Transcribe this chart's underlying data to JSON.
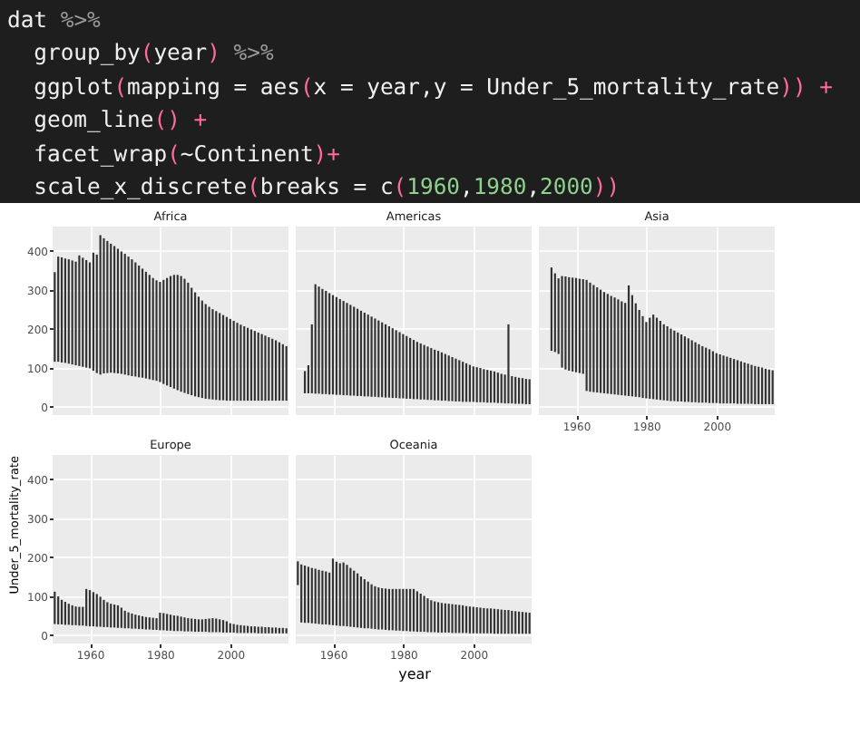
{
  "chart_data": [
    {
      "type": "bar",
      "title": "Africa",
      "annotations": [
        "dat %>%",
        "  group_by(year) %>%",
        "  ggplot(mapping = aes(x = year,y = Under_5_mortality_rate)) +",
        "  geom_line() +",
        "  facet_wrap(~Continent)+",
        "  scale_x_discrete(breaks = c(1960,1980,2000))"
      ],
      "x": [
        1950,
        1951,
        1952,
        1953,
        1954,
        1955,
        1956,
        1957,
        1958,
        1959,
        1960,
        1961,
        1962,
        1963,
        1964,
        1965,
        1966,
        1967,
        1968,
        1969,
        1970,
        1971,
        1972,
        1973,
        1974,
        1975,
        1976,
        1977,
        1978,
        1979,
        1980,
        1981,
        1982,
        1983,
        1984,
        1985,
        1986,
        1987,
        1988,
        1989,
        1990,
        1991,
        1992,
        1993,
        1994,
        1995,
        1996,
        1997,
        1998,
        1999,
        2000,
        2001,
        2002,
        2003,
        2004,
        2005,
        2006,
        2007,
        2008,
        2009,
        2010,
        2011,
        2012,
        2013,
        2014,
        2015,
        2016
      ],
      "base": [
        115,
        115,
        113,
        112,
        110,
        108,
        106,
        104,
        102,
        100,
        98,
        92,
        86,
        82,
        85,
        86,
        87,
        86,
        85,
        84,
        82,
        80,
        78,
        77,
        75,
        74,
        72,
        70,
        68,
        66,
        63,
        58,
        54,
        50,
        46,
        42,
        38,
        35,
        32,
        29,
        26,
        24,
        22,
        20,
        19,
        18,
        17,
        16,
        16,
        15,
        15,
        15,
        15,
        15,
        15,
        15,
        15,
        15,
        15,
        15,
        15,
        15,
        15,
        15,
        15,
        15,
        15
      ],
      "values": [
        230,
        270,
        270,
        268,
        268,
        267,
        266,
        284,
        280,
        276,
        272,
        303,
        304,
        358,
        347,
        339,
        331,
        326,
        320,
        314,
        310,
        305,
        300,
        293,
        287,
        280,
        274,
        268,
        262,
        258,
        257,
        267,
        276,
        285,
        292,
        296,
        297,
        293,
        286,
        276,
        267,
        258,
        250,
        243,
        237,
        232,
        228,
        224,
        219,
        215,
        210,
        205,
        200,
        195,
        191,
        187,
        183,
        179,
        175,
        171,
        167,
        163,
        159,
        155,
        150,
        145,
        140
      ],
      "color": "#333333",
      "xlim": [
        1949.4,
        2016.6
      ],
      "xticks": [
        1960,
        1980,
        2000
      ],
      "ylim": [
        -22,
        462
      ],
      "yticks": [
        0,
        100,
        200,
        300,
        400
      ],
      "grid": true,
      "tick_labels": "y"
    },
    {
      "type": "bar",
      "title": "Americas",
      "x": [
        1952,
        1953,
        1954,
        1955,
        1956,
        1957,
        1958,
        1959,
        1960,
        1961,
        1962,
        1963,
        1964,
        1965,
        1966,
        1967,
        1968,
        1969,
        1970,
        1971,
        1972,
        1973,
        1974,
        1975,
        1976,
        1977,
        1978,
        1979,
        1980,
        1981,
        1982,
        1983,
        1984,
        1985,
        1986,
        1987,
        1988,
        1989,
        1990,
        1991,
        1992,
        1993,
        1994,
        1995,
        1996,
        1997,
        1998,
        1999,
        2000,
        2001,
        2002,
        2003,
        2004,
        2005,
        2006,
        2007,
        2008,
        2009,
        2010,
        2011,
        2012,
        2013,
        2014,
        2015,
        2016
      ],
      "base": [
        34,
        34,
        34,
        33,
        33,
        32,
        32,
        31,
        31,
        30,
        30,
        29,
        29,
        28,
        28,
        27,
        27,
        26,
        26,
        25,
        25,
        24,
        24,
        23,
        23,
        22,
        22,
        21,
        21,
        20,
        20,
        19,
        19,
        18,
        18,
        17,
        17,
        16,
        16,
        15,
        15,
        14,
        14,
        13,
        13,
        12,
        12,
        12,
        12,
        11,
        11,
        11,
        10,
        10,
        10,
        9,
        9,
        8,
        8,
        8,
        7,
        7,
        7,
        6,
        6
      ],
      "values": [
        57,
        72,
        177,
        281,
        275,
        270,
        265,
        260,
        255,
        251,
        246,
        242,
        237,
        233,
        228,
        224,
        219,
        215,
        210,
        206,
        201,
        197,
        192,
        188,
        183,
        179,
        174,
        170,
        165,
        161,
        156,
        152,
        147,
        144,
        140,
        137,
        133,
        130,
        127,
        124,
        120,
        117,
        113,
        110,
        106,
        103,
        99,
        95,
        91,
        90,
        88,
        85,
        84,
        82,
        80,
        78,
        75,
        74,
        203,
        70,
        69,
        67,
        66,
        65,
        64
      ],
      "color": "#333333",
      "xlim": [
        1949.4,
        2016.6
      ],
      "xticks": [
        1960,
        1980,
        2000
      ],
      "ylim": [
        -22,
        462
      ],
      "yticks": [
        0,
        100,
        200,
        300,
        400
      ],
      "grid": true,
      "tick_labels": false
    },
    {
      "type": "bar",
      "title": "Asia",
      "x": [
        1953,
        1954,
        1955,
        1956,
        1957,
        1958,
        1959,
        1960,
        1961,
        1962,
        1963,
        1964,
        1965,
        1966,
        1967,
        1968,
        1969,
        1970,
        1971,
        1972,
        1973,
        1974,
        1975,
        1976,
        1977,
        1978,
        1979,
        1980,
        1981,
        1982,
        1983,
        1984,
        1985,
        1986,
        1987,
        1988,
        1989,
        1990,
        1991,
        1992,
        1993,
        1994,
        1995,
        1996,
        1997,
        1998,
        1999,
        2000,
        2001,
        2002,
        2003,
        2004,
        2005,
        2006,
        2007,
        2008,
        2009,
        2010,
        2011,
        2012,
        2013,
        2014,
        2015,
        2016
      ],
      "base": [
        143,
        140,
        135,
        100,
        95,
        92,
        90,
        88,
        86,
        84,
        40,
        38,
        37,
        36,
        35,
        34,
        33,
        32,
        31,
        30,
        29,
        28,
        27,
        26,
        25,
        24,
        22,
        21,
        20,
        19,
        18,
        17,
        16,
        15,
        14,
        14,
        13,
        13,
        12,
        12,
        11,
        11,
        10,
        10,
        10,
        9,
        9,
        9,
        8,
        8,
        8,
        8,
        8,
        7,
        7,
        7,
        7,
        7,
        6,
        6,
        6,
        6,
        6,
        6
      ],
      "values": [
        214,
        202,
        194,
        235,
        239,
        240,
        241,
        242,
        242,
        243,
        285,
        280,
        275,
        270,
        265,
        260,
        256,
        252,
        249,
        245,
        241,
        238,
        284,
        260,
        240,
        224,
        210,
        196,
        208,
        217,
        210,
        203,
        195,
        191,
        186,
        181,
        177,
        172,
        168,
        163,
        159,
        154,
        150,
        145,
        141,
        138,
        133,
        128,
        126,
        123,
        120,
        117,
        114,
        112,
        109,
        106,
        103,
        100,
        98,
        96,
        94,
        91,
        89,
        87
      ],
      "color": "#333333",
      "xlim": [
        1949.4,
        2016.6
      ],
      "xticks": [
        1960,
        1980,
        2000
      ],
      "ylim": [
        -22,
        462
      ],
      "yticks": [
        0,
        100,
        200,
        300,
        400
      ],
      "grid": true,
      "tick_labels": "x"
    },
    {
      "type": "bar",
      "title": "Europe",
      "ylabel": "Under_5_mortality_rate",
      "x": [
        1950,
        1951,
        1952,
        1953,
        1954,
        1955,
        1956,
        1957,
        1958,
        1959,
        1960,
        1961,
        1962,
        1963,
        1964,
        1965,
        1966,
        1967,
        1968,
        1969,
        1970,
        1971,
        1972,
        1973,
        1974,
        1975,
        1976,
        1977,
        1978,
        1979,
        1980,
        1981,
        1982,
        1983,
        1984,
        1985,
        1986,
        1987,
        1988,
        1989,
        1990,
        1991,
        1992,
        1993,
        1994,
        1995,
        1996,
        1997,
        1998,
        1999,
        2000,
        2001,
        2002,
        2003,
        2004,
        2005,
        2006,
        2007,
        2008,
        2009,
        2010,
        2011,
        2012,
        2013,
        2014,
        2015,
        2016
      ],
      "base": [
        28,
        27,
        27,
        26,
        26,
        25,
        25,
        24,
        24,
        23,
        22,
        22,
        21,
        21,
        20,
        20,
        19,
        19,
        18,
        18,
        17,
        17,
        16,
        16,
        15,
        15,
        14,
        14,
        13,
        13,
        12,
        12,
        11,
        11,
        10,
        10,
        10,
        9,
        9,
        9,
        8,
        8,
        8,
        8,
        7,
        7,
        7,
        7,
        6,
        6,
        6,
        6,
        5,
        5,
        5,
        5,
        5,
        5,
        4,
        4,
        4,
        4,
        4,
        4,
        4,
        4,
        4
      ],
      "values": [
        83,
        72,
        63,
        59,
        54,
        51,
        48,
        48,
        48,
        95,
        93,
        88,
        84,
        77,
        70,
        64,
        61,
        59,
        58,
        52,
        45,
        41,
        39,
        36,
        35,
        33,
        32,
        31,
        31,
        30,
        45,
        44,
        43,
        41,
        40,
        39,
        37,
        36,
        34,
        33,
        33,
        32,
        32,
        33,
        35,
        36,
        35,
        33,
        32,
        29,
        24,
        22,
        21,
        20,
        19,
        18,
        17,
        17,
        17,
        17,
        16,
        16,
        15,
        15,
        14,
        14,
        13
      ],
      "color": "#333333",
      "xlim": [
        1949.4,
        2016.6
      ],
      "xticks": [
        1960,
        1980,
        2000
      ],
      "ylim": [
        -22,
        462
      ],
      "yticks": [
        0,
        100,
        200,
        300,
        400
      ],
      "grid": true
    },
    {
      "type": "bar",
      "title": "Oceania",
      "xlabel": "year",
      "x": [
        1950,
        1951,
        1952,
        1953,
        1954,
        1955,
        1956,
        1957,
        1958,
        1959,
        1960,
        1961,
        1962,
        1963,
        1964,
        1965,
        1966,
        1967,
        1968,
        1969,
        1970,
        1971,
        1972,
        1973,
        1974,
        1975,
        1976,
        1977,
        1978,
        1979,
        1980,
        1981,
        1982,
        1983,
        1984,
        1985,
        1986,
        1987,
        1988,
        1989,
        1990,
        1991,
        1992,
        1993,
        1994,
        1995,
        1996,
        1997,
        1998,
        1999,
        2000,
        2001,
        2002,
        2003,
        2004,
        2005,
        2006,
        2007,
        2008,
        2009,
        2010,
        2011,
        2012,
        2013,
        2014,
        2015,
        2016
      ],
      "base": [
        128,
        32,
        31,
        31,
        30,
        29,
        28,
        27,
        27,
        26,
        25,
        24,
        23,
        23,
        22,
        21,
        20,
        19,
        18,
        17,
        17,
        16,
        15,
        14,
        14,
        13,
        12,
        12,
        11,
        11,
        10,
        10,
        9,
        9,
        8,
        8,
        8,
        7,
        7,
        7,
        6,
        6,
        6,
        6,
        5,
        5,
        5,
        5,
        5,
        4,
        4,
        4,
        4,
        4,
        4,
        4,
        3,
        3,
        3,
        3,
        3,
        3,
        3,
        3,
        3,
        3,
        3
      ],
      "values": [
        61,
        149,
        147,
        144,
        142,
        141,
        139,
        138,
        136,
        134,
        171,
        164,
        161,
        163,
        158,
        151,
        145,
        139,
        132,
        126,
        120,
        114,
        110,
        108,
        106,
        106,
        106,
        106,
        107,
        107,
        108,
        108,
        109,
        109,
        104,
        98,
        92,
        87,
        82,
        79,
        78,
        76,
        75,
        74,
        74,
        73,
        72,
        71,
        69,
        69,
        68,
        67,
        66,
        65,
        64,
        64,
        64,
        63,
        62,
        61,
        61,
        59,
        58,
        57,
        56,
        55,
        54
      ],
      "color": "#333333",
      "xlim": [
        1949.4,
        2016.6
      ],
      "xticks": [
        1960,
        1980,
        2000
      ],
      "ylim": [
        -22,
        462
      ],
      "yticks": [
        0,
        100,
        200,
        300,
        400
      ],
      "grid": true,
      "tick_labels": "x"
    }
  ]
}
